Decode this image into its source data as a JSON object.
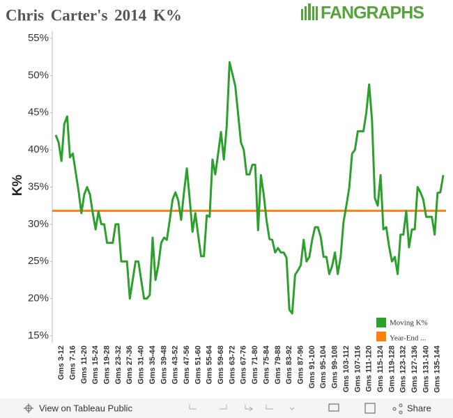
{
  "chart_data": {
    "type": "line",
    "title": "Chris Carter's 2014 K%",
    "logo": "FANGRAPHS",
    "ylabel": "K%",
    "categories": [
      null,
      null,
      "Gms 3-12",
      null,
      null,
      null,
      "Gms 7-16",
      null,
      null,
      null,
      "Gms 11-20",
      null,
      null,
      null,
      "Gms 15-24",
      null,
      null,
      null,
      "Gms 19-28",
      null,
      null,
      null,
      "Gms 23-32",
      null,
      null,
      null,
      "Gms 27-36",
      null,
      null,
      null,
      "Gms 31-40",
      null,
      null,
      null,
      "Gms 35-44",
      null,
      null,
      null,
      "Gms 39-48",
      null,
      null,
      null,
      "Gms 43-52",
      null,
      null,
      null,
      "Gms 47-56",
      null,
      null,
      null,
      "Gms 51-60",
      null,
      null,
      null,
      "Gms 55-64",
      null,
      null,
      null,
      "Gms 59-68",
      null,
      null,
      null,
      "Gms 63-72",
      null,
      null,
      null,
      "Gms 67-76",
      null,
      null,
      null,
      "Gms 71-80",
      null,
      null,
      null,
      "Gms 75-84",
      null,
      null,
      null,
      "Gms 79-88",
      null,
      null,
      null,
      "Gms 83-92",
      null,
      null,
      null,
      "Gms 87-96",
      null,
      null,
      null,
      "Gms 91-100",
      null,
      null,
      null,
      "Gms 95-104",
      null,
      null,
      null,
      "Gms 99-108",
      null,
      null,
      null,
      "Gms 103-112",
      null,
      null,
      null,
      "Gms 107-116",
      null,
      null,
      null,
      "Gms 111-120",
      null,
      null,
      null,
      "Gms 115-124",
      null,
      null,
      null,
      "Gms 119-128",
      null,
      null,
      null,
      "Gms 123-132",
      null,
      null,
      null,
      "Gms 127-136",
      null,
      null,
      null,
      "Gms 131-140",
      null,
      null,
      null,
      "Gms 135-144",
      null,
      null
    ],
    "series": [
      {
        "name": "Moving K%",
        "color": "#2ca02c",
        "values": [
          42,
          41,
          38.5,
          43.5,
          44.5,
          39,
          39.5,
          37,
          34.5,
          31.5,
          34,
          35,
          34,
          31.5,
          29.3,
          31.7,
          30,
          30,
          27.5,
          27.5,
          27.5,
          30,
          30,
          25,
          25,
          25,
          20,
          22.5,
          25,
          25,
          22.5,
          20,
          20,
          20.5,
          28.2,
          22.5,
          24.5,
          27.5,
          28.2,
          27.9,
          30.5,
          33.3,
          34.3,
          33.2,
          30.6,
          34.3,
          37.5,
          33.5,
          29,
          31.5,
          28.5,
          25.7,
          25.7,
          31.2,
          31,
          38.7,
          36.7,
          39.5,
          42.4,
          38.7,
          43.2,
          51.8,
          50.2,
          48.6,
          44.9,
          41,
          40,
          36.7,
          36.7,
          38,
          38,
          29.2,
          36.6,
          34,
          30.5,
          28,
          27.9,
          26.2,
          26.8,
          26.2,
          26.2,
          25.5,
          18.5,
          18,
          23.2,
          23.8,
          24.5,
          27.9,
          25,
          25.6,
          27.9,
          29.6,
          29.6,
          28.3,
          25.6,
          25.6,
          23.3,
          24.4,
          26.2,
          23.3,
          25.6,
          30.3,
          32.5,
          34.9,
          39.5,
          40,
          42.5,
          42.5,
          42.5,
          45,
          48.8,
          44,
          33.5,
          32.5,
          36.6,
          29.3,
          29.6,
          27,
          25,
          25.6,
          23.3,
          28.6,
          28.6,
          31.8,
          26.9,
          29.3,
          29.3,
          35,
          34.3,
          33.3,
          31,
          31,
          31,
          28.6,
          34.2,
          34.3,
          36.6
        ]
      }
    ],
    "reference": {
      "name": "Year-End ...",
      "color": "#ff7f0e",
      "value": 31.8
    },
    "ylim": [
      15,
      55
    ],
    "yticks": [
      {
        "value": 15,
        "label": "15%"
      },
      {
        "value": 20,
        "label": "20%"
      },
      {
        "value": 25,
        "label": "25%"
      },
      {
        "value": 30,
        "label": "30%"
      },
      {
        "value": 35,
        "label": "35%"
      },
      {
        "value": 40,
        "label": "40%"
      },
      {
        "value": 45,
        "label": "45%"
      },
      {
        "value": 50,
        "label": "50%"
      },
      {
        "value": 55,
        "label": "55%"
      }
    ],
    "grid": false,
    "legend": "bottom-right"
  },
  "toolbar": {
    "view": "View on Tableau Public",
    "share": "Share"
  }
}
